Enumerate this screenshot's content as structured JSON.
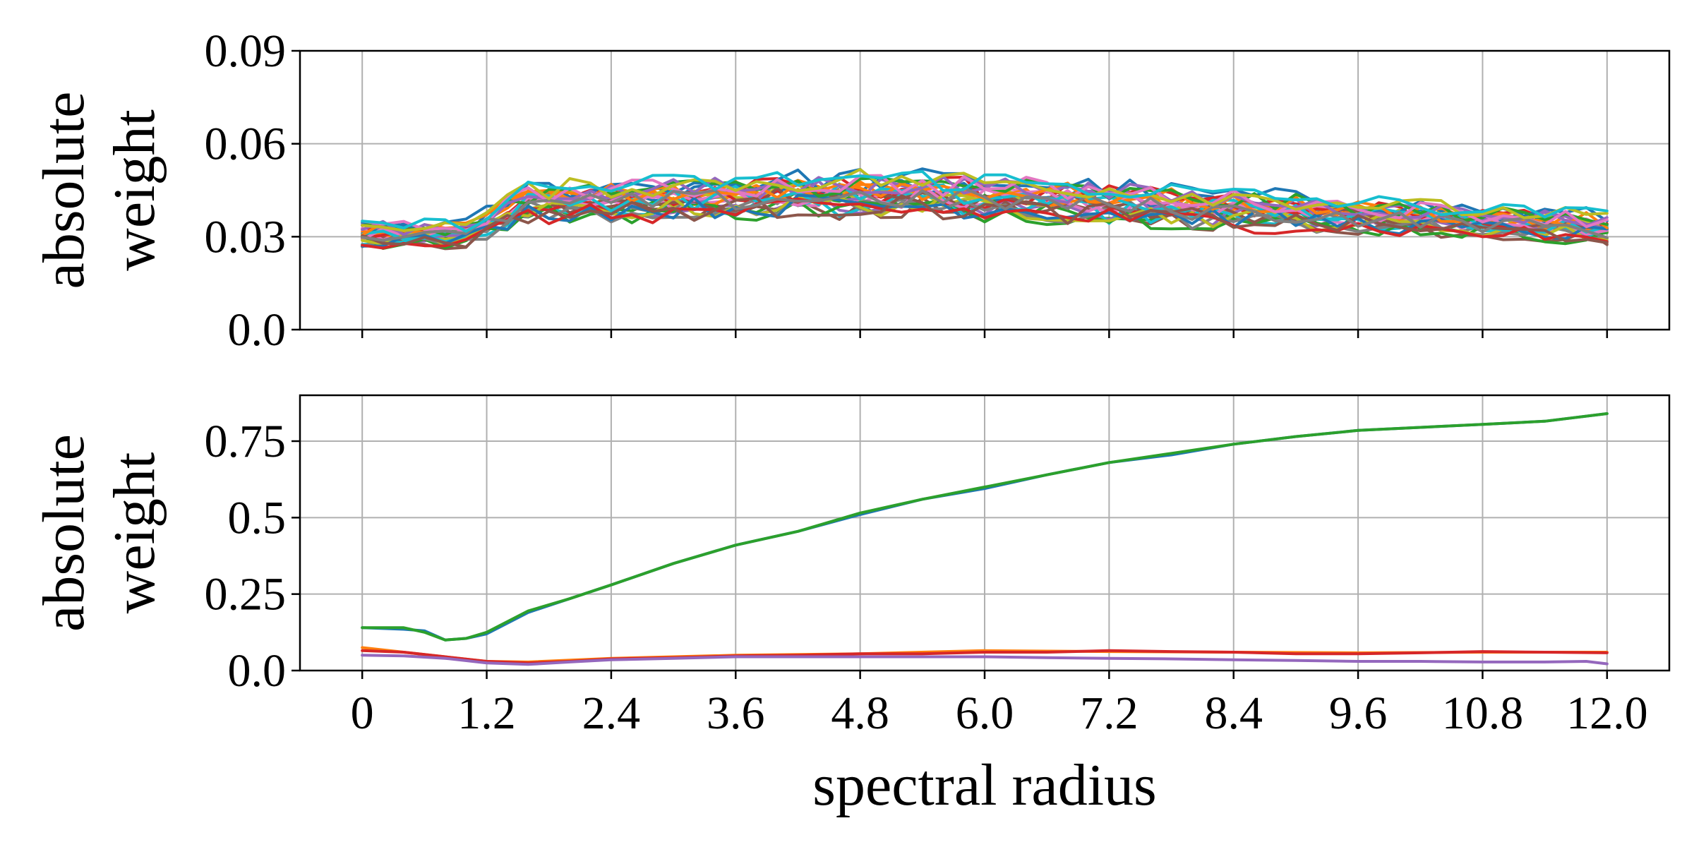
{
  "chart_data": [
    {
      "type": "line",
      "panel": "top",
      "ylabel": "absolute weight",
      "ylabel_lines": [
        "absolute",
        "weight"
      ],
      "xlabel": "",
      "xlim": [
        -0.6,
        12.6
      ],
      "ylim": [
        0.0,
        0.09
      ],
      "xticks": [
        0,
        1.2,
        2.4,
        3.6,
        4.8,
        6.0,
        7.2,
        8.4,
        9.6,
        10.8,
        12.0
      ],
      "xtick_labels_shown": false,
      "yticks": [
        0.0,
        0.03,
        0.06,
        0.09
      ],
      "ytick_labels": [
        "0.0",
        "0.03",
        "0.06",
        "0.09"
      ],
      "grid": true,
      "legend": "none",
      "series_count": 30,
      "x_step": 0.2,
      "palette": [
        "#1f77b4",
        "#ff7f0e",
        "#2ca02c",
        "#d62728",
        "#9467bd",
        "#8c564b",
        "#e377c2",
        "#7f7f7f",
        "#bcbd22",
        "#17becf"
      ],
      "envelope": {
        "x": [
          0,
          1.0,
          1.6,
          4.8,
          6.0,
          8.4,
          10.8,
          12.0
        ],
        "center": [
          0.031,
          0.031,
          0.041,
          0.044,
          0.043,
          0.039,
          0.035,
          0.033
        ],
        "spread": [
          0.004,
          0.004,
          0.006,
          0.007,
          0.007,
          0.006,
          0.005,
          0.005
        ]
      }
    },
    {
      "type": "line",
      "panel": "bottom",
      "ylabel": "absolute weight",
      "ylabel_lines": [
        "absolute",
        "weight"
      ],
      "xlabel": "spectral radius",
      "xlim": [
        -0.6,
        12.6
      ],
      "ylim": [
        0.0,
        0.9
      ],
      "xticks": [
        0,
        1.2,
        2.4,
        3.6,
        4.8,
        6.0,
        7.2,
        8.4,
        9.6,
        10.8,
        12.0
      ],
      "xtick_labels": [
        "0",
        "1.2",
        "2.4",
        "3.6",
        "4.8",
        "6.0",
        "7.2",
        "8.4",
        "9.6",
        "10.8",
        "12.0"
      ],
      "yticks": [
        0.0,
        0.25,
        0.5,
        0.75
      ],
      "ytick_labels": [
        "0.0",
        "0.25",
        "0.5",
        "0.75"
      ],
      "grid": true,
      "legend": "none",
      "series": [
        {
          "color": "#1f77b4",
          "x": [
            0,
            0.4,
            0.6,
            0.8,
            1.0,
            1.2,
            1.6,
            2.0,
            2.4,
            3.0,
            3.6,
            4.2,
            4.8,
            5.4,
            6.0,
            6.6,
            7.2,
            7.8,
            8.4,
            9.0,
            9.6,
            10.2,
            10.8,
            11.4,
            12.0
          ],
          "values": [
            0.14,
            0.135,
            0.13,
            0.1,
            0.105,
            0.12,
            0.19,
            0.235,
            0.28,
            0.35,
            0.41,
            0.455,
            0.51,
            0.56,
            0.595,
            0.64,
            0.68,
            0.705,
            0.74,
            0.765,
            0.785,
            0.795,
            0.805,
            0.815,
            0.84
          ]
        },
        {
          "color": "#2ca02c",
          "x": [
            0,
            0.4,
            0.6,
            0.8,
            1.0,
            1.2,
            1.6,
            2.0,
            2.4,
            3.0,
            3.6,
            4.2,
            4.8,
            5.4,
            6.0,
            6.6,
            7.2,
            7.8,
            8.4,
            9.0,
            9.6,
            10.2,
            10.8,
            11.4,
            12.0
          ],
          "values": [
            0.14,
            0.14,
            0.125,
            0.1,
            0.105,
            0.125,
            0.195,
            0.235,
            0.28,
            0.35,
            0.41,
            0.455,
            0.515,
            0.56,
            0.6,
            0.64,
            0.68,
            0.71,
            0.74,
            0.765,
            0.785,
            0.795,
            0.805,
            0.815,
            0.84
          ]
        },
        {
          "color": "#ff7f0e",
          "x": [
            0,
            0.4,
            0.8,
            1.2,
            1.6,
            2.4,
            3.6,
            4.8,
            6.0,
            7.2,
            8.4,
            9.6,
            10.8,
            12.0
          ],
          "values": [
            0.075,
            0.06,
            0.045,
            0.03,
            0.028,
            0.04,
            0.05,
            0.055,
            0.065,
            0.062,
            0.06,
            0.058,
            0.06,
            0.06
          ]
        },
        {
          "color": "#d62728",
          "x": [
            0,
            0.4,
            0.8,
            1.2,
            1.6,
            2.0,
            2.4,
            3.0,
            3.6,
            4.2,
            4.8,
            5.4,
            6.0,
            6.6,
            7.2,
            7.8,
            8.4,
            9.0,
            9.6,
            10.2,
            10.8,
            11.4,
            12.0
          ],
          "values": [
            0.065,
            0.06,
            0.045,
            0.03,
            0.025,
            0.03,
            0.038,
            0.042,
            0.048,
            0.05,
            0.055,
            0.055,
            0.06,
            0.06,
            0.065,
            0.062,
            0.06,
            0.055,
            0.055,
            0.058,
            0.062,
            0.06,
            0.058
          ]
        },
        {
          "color": "#9467bd",
          "x": [
            0,
            0.4,
            0.8,
            1.2,
            1.6,
            2.0,
            2.4,
            3.0,
            3.6,
            4.2,
            4.8,
            5.4,
            6.0,
            6.6,
            7.2,
            7.8,
            8.4,
            9.0,
            9.6,
            10.2,
            10.8,
            11.4,
            11.8,
            12.0
          ],
          "values": [
            0.05,
            0.048,
            0.04,
            0.025,
            0.02,
            0.028,
            0.035,
            0.04,
            0.045,
            0.045,
            0.045,
            0.045,
            0.045,
            0.042,
            0.04,
            0.038,
            0.035,
            0.033,
            0.03,
            0.03,
            0.028,
            0.028,
            0.03,
            0.022
          ]
        }
      ]
    }
  ]
}
